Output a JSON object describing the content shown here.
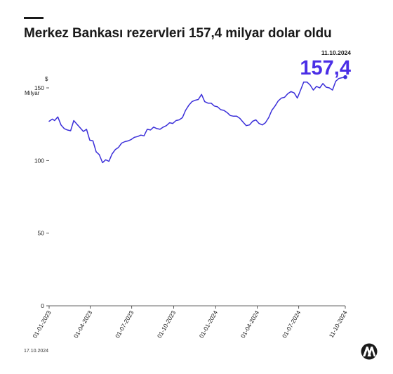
{
  "header": {
    "title": "Merkez Bankası rezervleri 157,4 milyar dolar oldu"
  },
  "footer": {
    "date": "17.10.2024",
    "logo": "AA"
  },
  "colors": {
    "line": "#3b2fd9",
    "highlight": "#4a2ee6",
    "axis": "#333333",
    "text": "#1a1a1a"
  },
  "chart_data": {
    "type": "line",
    "title": "Merkez Bankası rezervleri 157,4 milyar dolar oldu",
    "ylabel": [
      "$",
      "Milyar"
    ],
    "ylim": [
      0,
      160
    ],
    "yticks": [
      0,
      50,
      100,
      150
    ],
    "xlim": [
      "2023-01-01",
      "2024-10-11"
    ],
    "xticks": [
      "01-01-2023",
      "01-04-2023",
      "01-07-2023",
      "01-10-2023",
      "01-01-2024",
      "01-04-2024",
      "01-07-2024",
      "11-10-2024"
    ],
    "grid": false,
    "callout": {
      "date": "11.10.2024",
      "value": "157,4"
    },
    "series": [
      {
        "values": [
          [
            "2023-01-01",
            127.0
          ],
          [
            "2023-01-08",
            128.5
          ],
          [
            "2023-01-13",
            127.5
          ],
          [
            "2023-01-20",
            130.0
          ],
          [
            "2023-01-27",
            124.5
          ],
          [
            "2023-02-03",
            122.0
          ],
          [
            "2023-02-10",
            121.0
          ],
          [
            "2023-02-17",
            120.5
          ],
          [
            "2023-02-24",
            127.5
          ],
          [
            "2023-03-03",
            125.0
          ],
          [
            "2023-03-10",
            122.5
          ],
          [
            "2023-03-17",
            120.0
          ],
          [
            "2023-03-24",
            121.5
          ],
          [
            "2023-03-31",
            114.0
          ],
          [
            "2023-04-07",
            113.5
          ],
          [
            "2023-04-14",
            106.0
          ],
          [
            "2023-04-21",
            104.0
          ],
          [
            "2023-04-28",
            98.5
          ],
          [
            "2023-05-05",
            100.5
          ],
          [
            "2023-05-12",
            99.5
          ],
          [
            "2023-05-19",
            104.5
          ],
          [
            "2023-05-26",
            107.5
          ],
          [
            "2023-06-02",
            109.0
          ],
          [
            "2023-06-09",
            112.0
          ],
          [
            "2023-06-16",
            113.0
          ],
          [
            "2023-06-23",
            113.5
          ],
          [
            "2023-06-30",
            114.5
          ],
          [
            "2023-07-07",
            116.0
          ],
          [
            "2023-07-14",
            116.5
          ],
          [
            "2023-07-21",
            117.5
          ],
          [
            "2023-07-28",
            117.0
          ],
          [
            "2023-08-04",
            121.5
          ],
          [
            "2023-08-11",
            121.0
          ],
          [
            "2023-08-18",
            123.0
          ],
          [
            "2023-08-25",
            122.0
          ],
          [
            "2023-09-01",
            121.5
          ],
          [
            "2023-09-08",
            123.0
          ],
          [
            "2023-09-15",
            124.0
          ],
          [
            "2023-09-22",
            126.0
          ],
          [
            "2023-09-29",
            125.5
          ],
          [
            "2023-10-06",
            127.5
          ],
          [
            "2023-10-13",
            128.0
          ],
          [
            "2023-10-20",
            129.5
          ],
          [
            "2023-10-27",
            134.5
          ],
          [
            "2023-11-03",
            138.0
          ],
          [
            "2023-11-10",
            140.5
          ],
          [
            "2023-11-17",
            141.5
          ],
          [
            "2023-11-24",
            142.0
          ],
          [
            "2023-12-01",
            145.5
          ],
          [
            "2023-12-08",
            140.5
          ],
          [
            "2023-12-15",
            139.5
          ],
          [
            "2023-12-22",
            139.5
          ],
          [
            "2023-12-29",
            137.5
          ],
          [
            "2024-01-05",
            137.0
          ],
          [
            "2024-01-12",
            135.0
          ],
          [
            "2024-01-19",
            134.5
          ],
          [
            "2024-01-26",
            133.0
          ],
          [
            "2024-02-02",
            131.0
          ],
          [
            "2024-02-09",
            130.5
          ],
          [
            "2024-02-16",
            130.5
          ],
          [
            "2024-02-23",
            129.0
          ],
          [
            "2024-03-01",
            126.5
          ],
          [
            "2024-03-08",
            124.0
          ],
          [
            "2024-03-15",
            124.5
          ],
          [
            "2024-03-22",
            127.0
          ],
          [
            "2024-03-29",
            128.0
          ],
          [
            "2024-04-05",
            125.5
          ],
          [
            "2024-04-12",
            124.5
          ],
          [
            "2024-04-19",
            126.0
          ],
          [
            "2024-04-26",
            129.5
          ],
          [
            "2024-05-03",
            134.5
          ],
          [
            "2024-05-10",
            137.5
          ],
          [
            "2024-05-17",
            141.0
          ],
          [
            "2024-05-24",
            143.0
          ],
          [
            "2024-05-31",
            143.5
          ],
          [
            "2024-06-07",
            146.0
          ],
          [
            "2024-06-14",
            147.5
          ],
          [
            "2024-06-21",
            146.5
          ],
          [
            "2024-06-28",
            143.0
          ],
          [
            "2024-07-05",
            148.5
          ],
          [
            "2024-07-12",
            154.0
          ],
          [
            "2024-07-19",
            154.0
          ],
          [
            "2024-07-26",
            152.0
          ],
          [
            "2024-08-02",
            148.5
          ],
          [
            "2024-08-09",
            151.0
          ],
          [
            "2024-08-16",
            150.0
          ],
          [
            "2024-08-23",
            153.0
          ],
          [
            "2024-08-30",
            150.5
          ],
          [
            "2024-09-06",
            150.0
          ],
          [
            "2024-09-13",
            148.5
          ],
          [
            "2024-09-20",
            154.5
          ],
          [
            "2024-09-27",
            156.5
          ],
          [
            "2024-10-04",
            157.0
          ],
          [
            "2024-10-11",
            157.4
          ]
        ]
      }
    ]
  }
}
